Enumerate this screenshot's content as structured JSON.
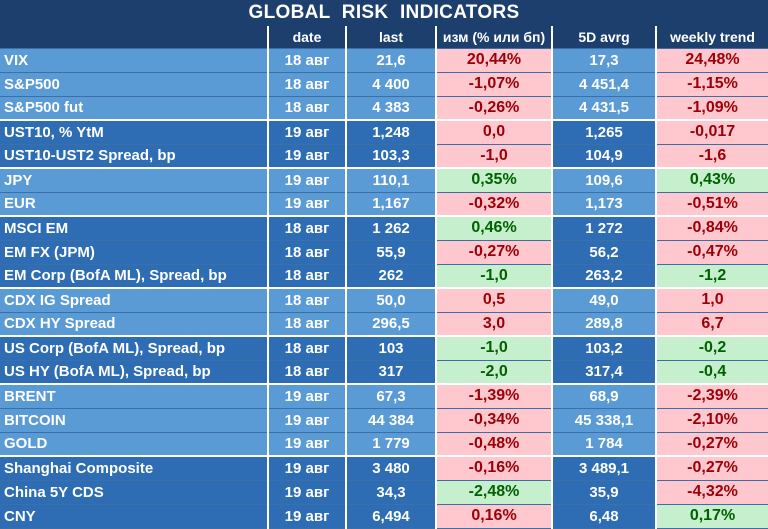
{
  "title": "GLOBAL  RISK  INDICATORS",
  "chart_data": {
    "type": "table",
    "title": "GLOBAL  RISK  INDICATORS",
    "columns": [
      "",
      "date",
      "last",
      "изм (% или бп)",
      "5D avrg",
      "weekly trend"
    ],
    "rows": [
      {
        "name": "VIX",
        "date": "18 авг",
        "last": "21,6",
        "change": "20,44%",
        "change_sign": "neg",
        "avg5d": "17,3",
        "weekly": "24,48%",
        "weekly_sign": "neg",
        "group": 0
      },
      {
        "name": "S&P500",
        "date": "18 авг",
        "last": "4 400",
        "change": "-1,07%",
        "change_sign": "neg",
        "avg5d": "4 451,4",
        "weekly": "-1,15%",
        "weekly_sign": "neg",
        "group": 0
      },
      {
        "name": "S&P500 fut",
        "date": "18 авг",
        "last": "4 383",
        "change": "-0,26%",
        "change_sign": "neg",
        "avg5d": "4 431,5",
        "weekly": "-1,09%",
        "weekly_sign": "neg",
        "group": 0
      },
      {
        "name": "UST10, % YtM",
        "date": "19 авг",
        "last": "1,248",
        "change": "0,0",
        "change_sign": "neg",
        "avg5d": "1,265",
        "weekly": "-0,017",
        "weekly_sign": "neg",
        "group": 1
      },
      {
        "name": "UST10-UST2 Spread, bp",
        "date": "19 авг",
        "last": "103,3",
        "change": "-1,0",
        "change_sign": "neg",
        "avg5d": "104,9",
        "weekly": "-1,6",
        "weekly_sign": "neg",
        "group": 1
      },
      {
        "name": "JPY",
        "date": "19 авг",
        "last": "110,1",
        "change": "0,35%",
        "change_sign": "pos",
        "avg5d": "109,6",
        "weekly": "0,43%",
        "weekly_sign": "pos",
        "group": 2
      },
      {
        "name": "EUR",
        "date": "19 авг",
        "last": "1,167",
        "change": "-0,32%",
        "change_sign": "neg",
        "avg5d": "1,173",
        "weekly": "-0,51%",
        "weekly_sign": "neg",
        "group": 2
      },
      {
        "name": "MSCI EM",
        "date": "18 авг",
        "last": "1 262",
        "change": "0,46%",
        "change_sign": "pos",
        "avg5d": "1 272",
        "weekly": "-0,84%",
        "weekly_sign": "neg",
        "group": 3
      },
      {
        "name": "EM FX (JPM)",
        "date": "18 авг",
        "last": "55,9",
        "change": "-0,27%",
        "change_sign": "neg",
        "avg5d": "56,2",
        "weekly": "-0,47%",
        "weekly_sign": "neg",
        "group": 3
      },
      {
        "name": "EM Corp (BofA ML), Spread, bp",
        "date": "18 авг",
        "last": "262",
        "change": "-1,0",
        "change_sign": "pos",
        "avg5d": "263,2",
        "weekly": "-1,2",
        "weekly_sign": "pos",
        "group": 3
      },
      {
        "name": "CDX IG Spread",
        "date": "18 авг",
        "last": "50,0",
        "change": "0,5",
        "change_sign": "neg",
        "avg5d": "49,0",
        "weekly": "1,0",
        "weekly_sign": "neg",
        "group": 4
      },
      {
        "name": "CDX HY Spread",
        "date": "18 авг",
        "last": "296,5",
        "change": "3,0",
        "change_sign": "neg",
        "avg5d": "289,8",
        "weekly": "6,7",
        "weekly_sign": "neg",
        "group": 4
      },
      {
        "name": "US Corp (BofA ML), Spread, bp",
        "date": "18 авг",
        "last": "103",
        "change": "-1,0",
        "change_sign": "pos",
        "avg5d": "103,2",
        "weekly": "-0,2",
        "weekly_sign": "pos",
        "group": 5
      },
      {
        "name": "US HY (BofA ML), Spread, bp",
        "date": "18 авг",
        "last": "317",
        "change": "-2,0",
        "change_sign": "pos",
        "avg5d": "317,4",
        "weekly": "-0,4",
        "weekly_sign": "pos",
        "group": 5
      },
      {
        "name": "BRENT",
        "date": "19 авг",
        "last": "67,3",
        "change": "-1,39%",
        "change_sign": "neg",
        "avg5d": "68,9",
        "weekly": "-2,39%",
        "weekly_sign": "neg",
        "group": 6
      },
      {
        "name": "BITCOIN",
        "date": "19 авг",
        "last": "44 384",
        "change": "-0,34%",
        "change_sign": "neg",
        "avg5d": "45 338,1",
        "weekly": "-2,10%",
        "weekly_sign": "neg",
        "group": 6
      },
      {
        "name": "GOLD",
        "date": "19 авг",
        "last": "1 779",
        "change": "-0,48%",
        "change_sign": "neg",
        "avg5d": "1 784",
        "weekly": "-0,27%",
        "weekly_sign": "neg",
        "group": 6
      },
      {
        "name": "Shanghai Composite",
        "date": "19 авг",
        "last": "3 480",
        "change": "-0,16%",
        "change_sign": "neg",
        "avg5d": "3 489,1",
        "weekly": "-0,27%",
        "weekly_sign": "neg",
        "group": 7
      },
      {
        "name": "China 5Y CDS",
        "date": "19 авг",
        "last": "34,3",
        "change": "-2,48%",
        "change_sign": "pos",
        "avg5d": "35,9",
        "weekly": "-4,32%",
        "weekly_sign": "neg",
        "group": 7
      },
      {
        "name": "CNY",
        "date": "19 авг",
        "last": "6,494",
        "change": "0,16%",
        "change_sign": "neg",
        "avg5d": "6,48",
        "weekly": "0,17%",
        "weekly_sign": "pos",
        "group": 7
      }
    ]
  },
  "colors": {
    "header_bg": "#1d3f6e",
    "row_light": "#5b9bd5",
    "row_dark": "#2e6db4",
    "positive_bg": "#c6efce",
    "positive_fg": "#006100",
    "negative_bg": "#ffc7ce",
    "negative_fg": "#9c0006"
  }
}
